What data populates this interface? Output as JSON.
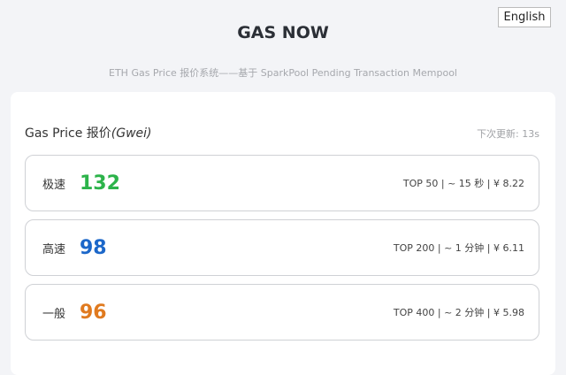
{
  "header": {
    "language_button": "English",
    "title": "GAS NOW",
    "subtitle": "ETH Gas Price 报价系统——基于 SparkPool Pending Transaction Mempool"
  },
  "panel": {
    "title": "Gas Price 报价",
    "unit": "(Gwei)",
    "next_update": "下次更新: 13s"
  },
  "colors": {
    "rapid": "#2cb34a",
    "fast": "#1c67c9",
    "standard": "#e07a1f"
  },
  "tiers": [
    {
      "label": "极速",
      "price": "132",
      "info": "TOP 50 | ~ 15 秒 | ¥ 8.22",
      "color": "#2cb34a"
    },
    {
      "label": "高速",
      "price": "98",
      "info": "TOP 200 | ~ 1 分钟 | ¥ 6.11",
      "color": "#1c67c9"
    },
    {
      "label": "一般",
      "price": "96",
      "info": "TOP 400 | ~ 2 分钟 | ¥ 5.98",
      "color": "#e07a1f"
    }
  ]
}
